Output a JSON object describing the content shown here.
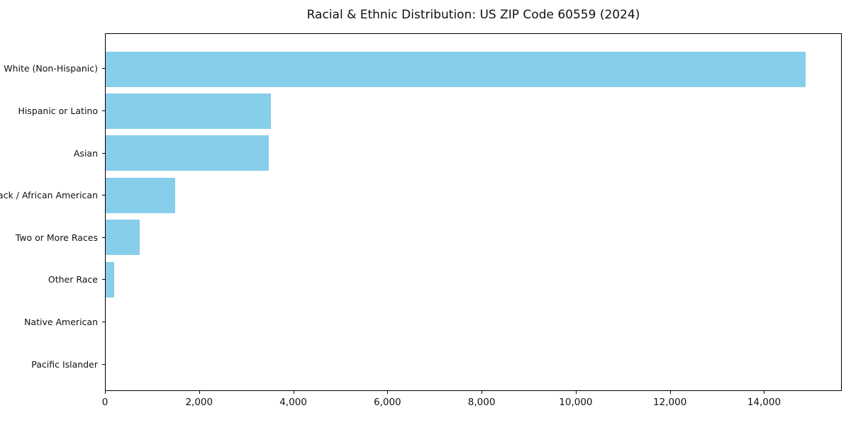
{
  "chart_data": {
    "type": "bar",
    "orientation": "horizontal",
    "title": "Racial & Ethnic Distribution: US ZIP Code 60559 (2024)",
    "categories": [
      "White (Non-Hispanic)",
      "Hispanic or Latino",
      "Asian",
      "Black / African American",
      "Two or More Races",
      "Other Race",
      "Native American",
      "Pacific Islander"
    ],
    "values": [
      14900,
      3520,
      3470,
      1480,
      720,
      180,
      0,
      0
    ],
    "xlabel": "",
    "ylabel": "",
    "xlim": [
      0,
      15650
    ],
    "xticks": [
      0,
      2000,
      4000,
      6000,
      8000,
      10000,
      12000,
      14000
    ],
    "xtick_labels": [
      "0",
      "2,000",
      "4,000",
      "6,000",
      "8,000",
      "10,000",
      "12,000",
      "14,000"
    ],
    "bar_color": "#87CEEB",
    "frame_color": "#000000",
    "text_color": "#111111",
    "background_color": "#ffffff",
    "grid": false,
    "legend": null
  }
}
